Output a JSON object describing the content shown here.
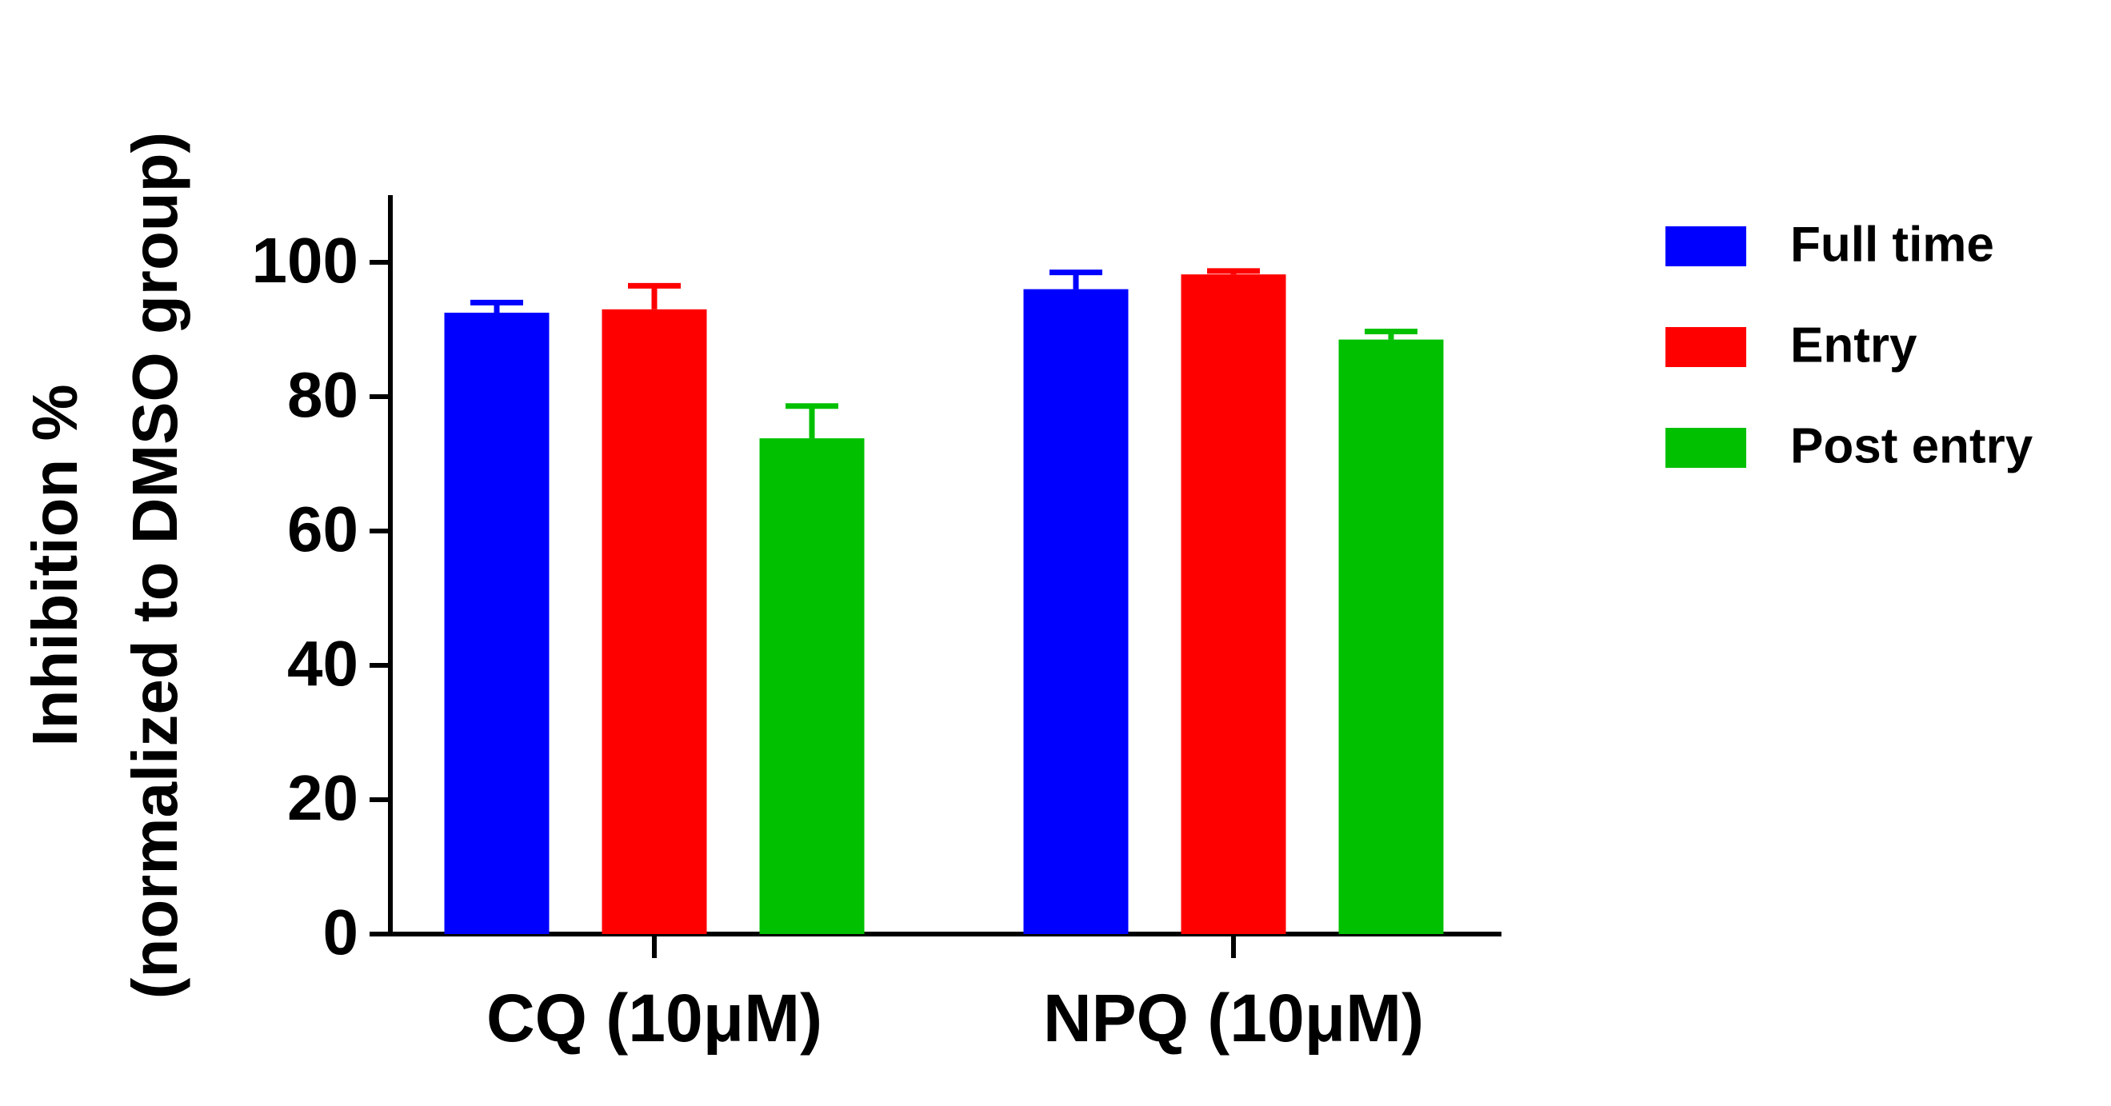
{
  "chart_data": {
    "type": "bar",
    "y_label": [
      "Inhibition %",
      "(normalized to DMSO group)"
    ],
    "categories": [
      "CQ (10μM)",
      "NPQ (10μM)"
    ],
    "series": [
      {
        "name": "Full time",
        "color": "#0000ff",
        "values": [
          92.5,
          96
        ],
        "errors": [
          1.5,
          2.5
        ]
      },
      {
        "name": "Entry",
        "color": "#ff0000",
        "values": [
          93,
          98.2
        ],
        "errors": [
          3.5,
          0.5
        ]
      },
      {
        "name": "Post entry",
        "color": "#00c000",
        "values": [
          73.8,
          88.5
        ],
        "errors": [
          4.8,
          1.2
        ]
      }
    ],
    "ylim": [
      0,
      110
    ],
    "yticks": [
      0,
      20,
      40,
      60,
      80,
      100
    ],
    "grid": false,
    "legend": "right"
  }
}
